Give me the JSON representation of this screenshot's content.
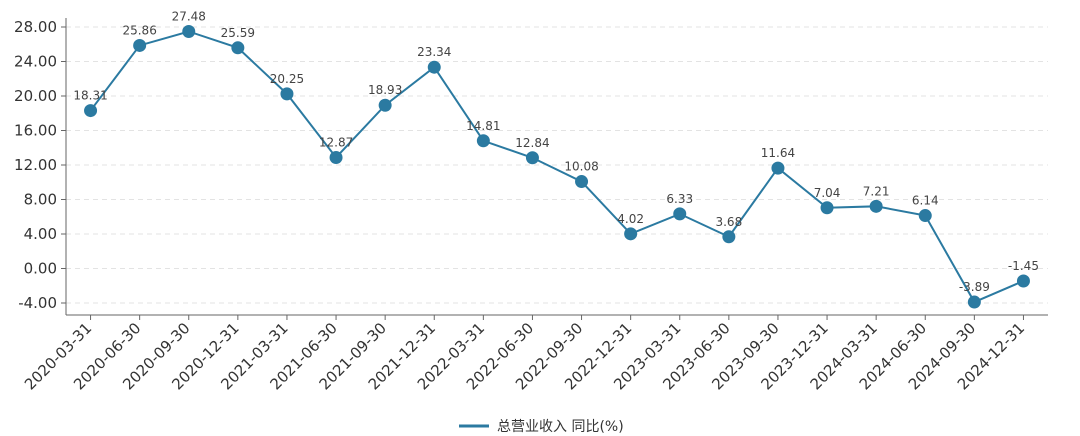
{
  "chart_data": {
    "type": "line",
    "categories": [
      "2020-03-31",
      "2020-06-30",
      "2020-09-30",
      "2020-12-31",
      "2021-03-31",
      "2021-06-30",
      "2021-09-30",
      "2021-12-31",
      "2022-03-31",
      "2022-06-30",
      "2022-09-30",
      "2022-12-31",
      "2023-03-31",
      "2023-06-30",
      "2023-09-30",
      "2023-12-31",
      "2024-03-31",
      "2024-06-30",
      "2024-09-30",
      "2024-12-31"
    ],
    "series": [
      {
        "name": "总营业收入 同比(%)",
        "values": [
          18.31,
          25.86,
          27.48,
          25.59,
          20.25,
          12.87,
          18.93,
          23.34,
          14.81,
          12.84,
          10.08,
          4.02,
          6.33,
          3.68,
          11.64,
          7.04,
          7.21,
          6.14,
          -3.89,
          -1.45
        ],
        "color": "#2b7aa1"
      }
    ],
    "y_ticks": [
      "28.00",
      "24.00",
      "20.00",
      "16.00",
      "12.00",
      "8.00",
      "4.00",
      "0.00",
      "-4.00"
    ],
    "ylim": [
      -4,
      28
    ],
    "grid": "horizontal dashed",
    "legend_position": "bottom-center"
  }
}
